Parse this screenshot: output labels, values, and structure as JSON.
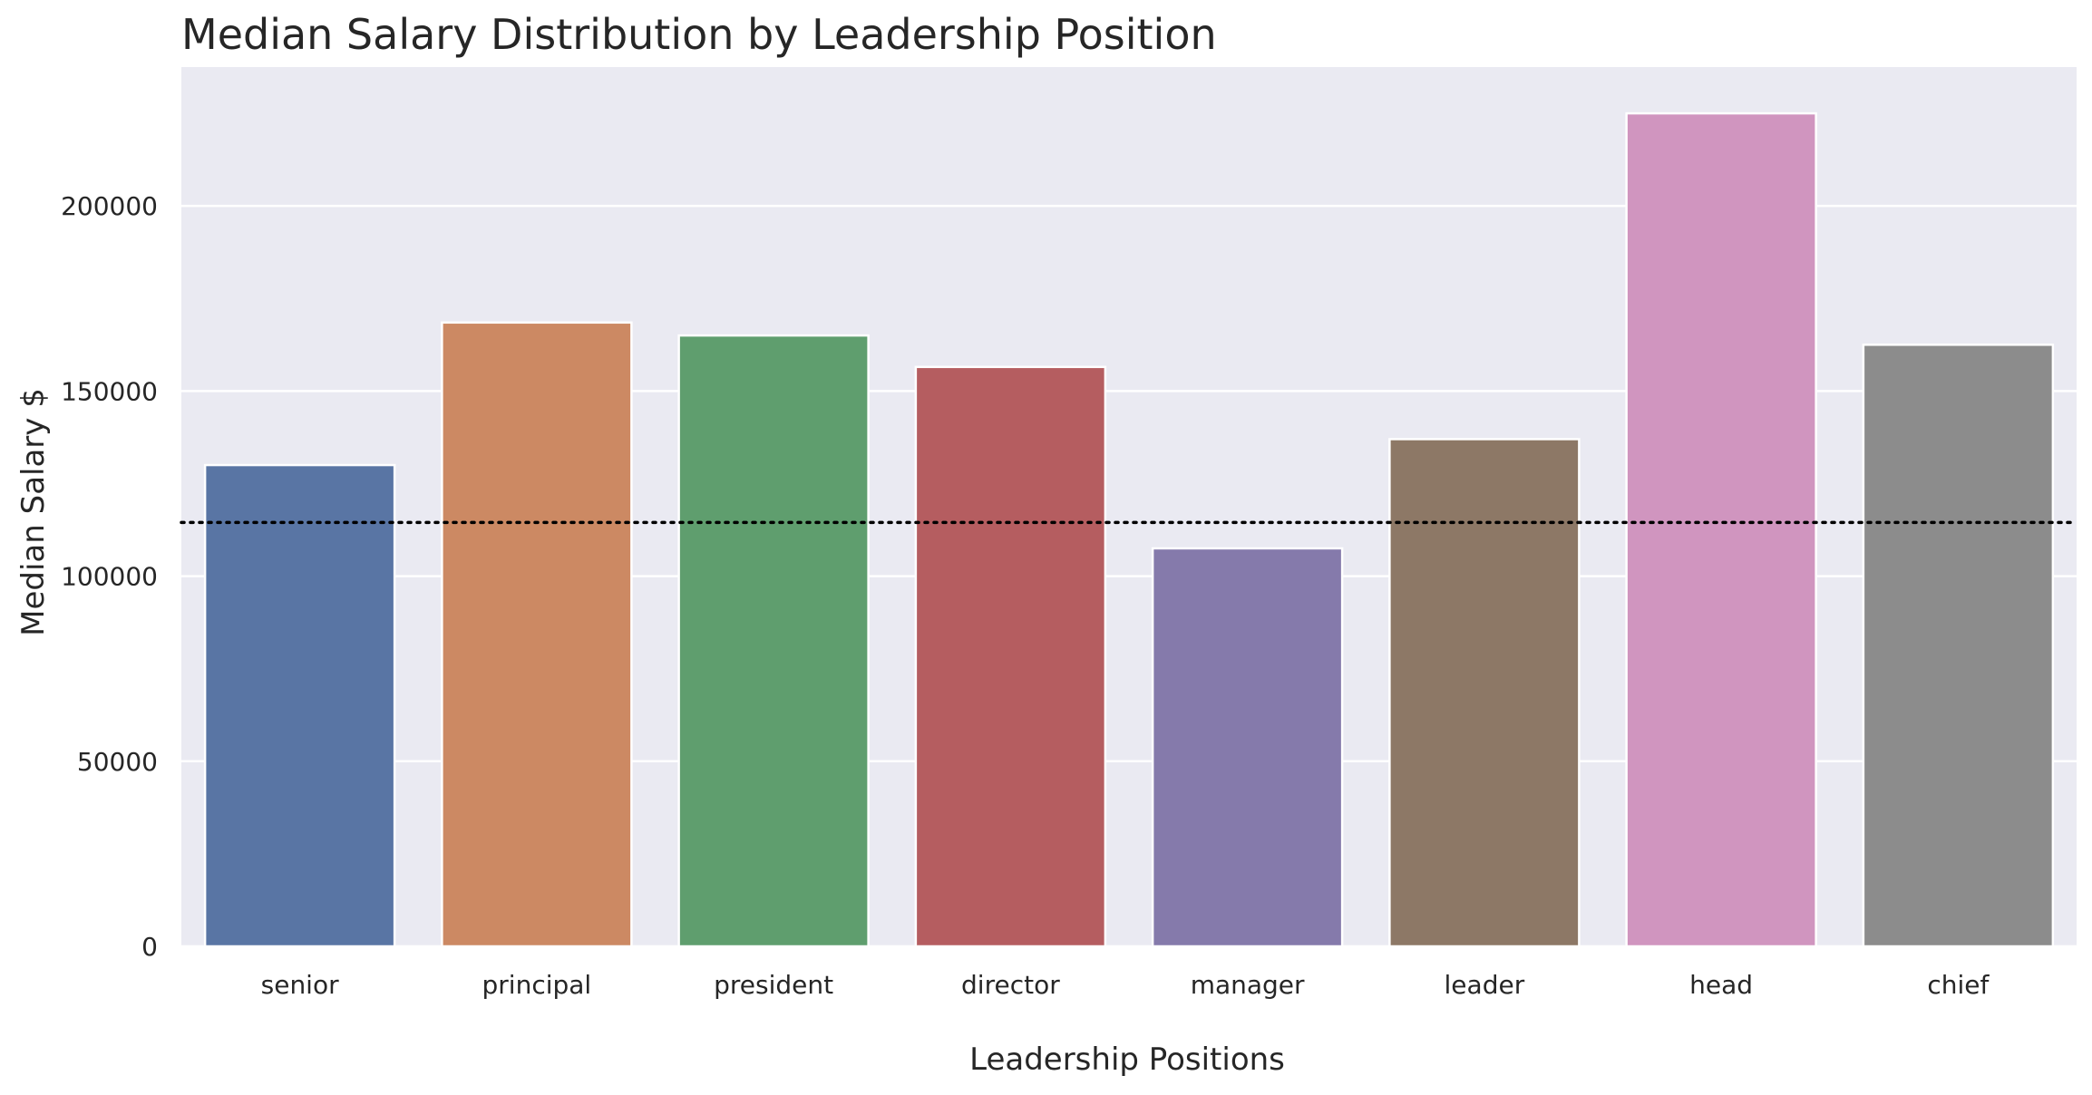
{
  "chart_data": {
    "type": "bar",
    "title": "Median Salary Distribution by Leadership Position",
    "xlabel": "Leadership Positions",
    "ylabel": "Median Salary $",
    "categories": [
      "senior",
      "principal",
      "president",
      "director",
      "manager",
      "leader",
      "head",
      "chief"
    ],
    "values": [
      130000,
      168500,
      165000,
      156500,
      107500,
      137000,
      225000,
      162500
    ],
    "colors": [
      "#5975a4",
      "#cc8963",
      "#5f9e6e",
      "#b55d60",
      "#857aab",
      "#8d7866",
      "#d095bf",
      "#8c8c8c"
    ],
    "ylim": [
      0,
      237500
    ],
    "yticks": [
      0,
      50000,
      100000,
      150000,
      200000
    ],
    "reference_line": {
      "value": 114500,
      "style": "dotted",
      "color": "#000000"
    },
    "grid": "y",
    "background": "#eaeaf2",
    "legend": "none"
  }
}
